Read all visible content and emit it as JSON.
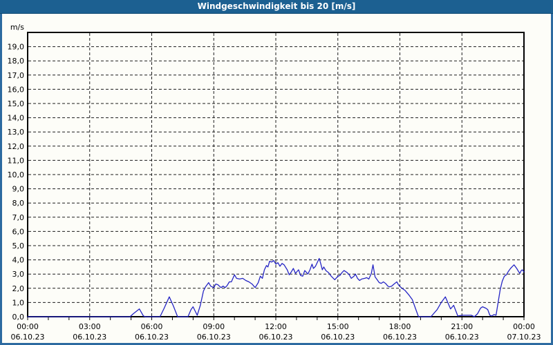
{
  "window": {
    "title": "Windgeschwindigkeit bis 20 [m/s]"
  },
  "colors": {
    "titlebar_bg": "#1c6091",
    "titlebar_border": "#0f4a73",
    "frame": "#2c6aa0",
    "page_bg": "#fdfdf8",
    "plot_bg": "#fdfdf8",
    "axis": "#000000",
    "grid": "#1a1a1a",
    "text": "#000000",
    "line": "#2424c4"
  },
  "chart_data": {
    "type": "line",
    "title": "Windgeschwindigkeit bis 20 [m/s]",
    "ylabel_unit": "m/s",
    "ylim": [
      0,
      20
    ],
    "xlim_hours": [
      0,
      24
    ],
    "y_tick_step": 1,
    "x_gridline_step_hours": 3,
    "x_label_step_hours": 3,
    "x_minor_tick_step_hours": 1,
    "grid": "dashed",
    "legend": "none",
    "y_ticklabels": [
      "0,0",
      "1,0",
      "2,0",
      "3,0",
      "4,0",
      "5,0",
      "6,0",
      "7,0",
      "8,0",
      "9,0",
      "10,0",
      "11,0",
      "12,0",
      "13,0",
      "14,0",
      "15,0",
      "16,0",
      "17,0",
      "18,0",
      "19,0"
    ],
    "x_ticklabels": [
      {
        "time": "00:00",
        "date": "06.10.23"
      },
      {
        "time": "03:00",
        "date": "06.10.23"
      },
      {
        "time": "06:00",
        "date": "06.10.23"
      },
      {
        "time": "09:00",
        "date": "06.10.23"
      },
      {
        "time": "12:00",
        "date": "06.10.23"
      },
      {
        "time": "15:00",
        "date": "06.10.23"
      },
      {
        "time": "18:00",
        "date": "06.10.23"
      },
      {
        "time": "21:00",
        "date": "06.10.23"
      },
      {
        "time": "00:00",
        "date": "07.10.23"
      }
    ],
    "series": [
      {
        "name": "Windgeschwindigkeit",
        "unit": "m/s",
        "points": [
          [
            0,
            0
          ],
          [
            1,
            0
          ],
          [
            2,
            0
          ],
          [
            3,
            0
          ],
          [
            4,
            0
          ],
          [
            4.95,
            0
          ],
          [
            5.1,
            0.2
          ],
          [
            5.4,
            0.55
          ],
          [
            5.6,
            0.05
          ],
          [
            5.7,
            0
          ],
          [
            6.4,
            0
          ],
          [
            6.6,
            0.6
          ],
          [
            6.85,
            1.4
          ],
          [
            7.05,
            0.75
          ],
          [
            7.25,
            0
          ],
          [
            7.75,
            0
          ],
          [
            7.9,
            0.5
          ],
          [
            8.0,
            0.7
          ],
          [
            8.2,
            0.1
          ],
          [
            8.35,
            0.8
          ],
          [
            8.5,
            1.8
          ],
          [
            8.6,
            2.1
          ],
          [
            8.75,
            2.4
          ],
          [
            8.85,
            2.15
          ],
          [
            9.0,
            2.05
          ],
          [
            9.1,
            2.3
          ],
          [
            9.2,
            2.25
          ],
          [
            9.35,
            2.05
          ],
          [
            9.45,
            2.15
          ],
          [
            9.55,
            2.05
          ],
          [
            9.65,
            2.2
          ],
          [
            9.75,
            2.45
          ],
          [
            9.85,
            2.45
          ],
          [
            10.0,
            2.95
          ],
          [
            10.1,
            2.7
          ],
          [
            10.25,
            2.65
          ],
          [
            10.4,
            2.7
          ],
          [
            10.55,
            2.55
          ],
          [
            10.7,
            2.45
          ],
          [
            10.85,
            2.3
          ],
          [
            11.0,
            2.05
          ],
          [
            11.15,
            2.4
          ],
          [
            11.25,
            2.85
          ],
          [
            11.35,
            2.7
          ],
          [
            11.45,
            3.3
          ],
          [
            11.55,
            3.6
          ],
          [
            11.62,
            3.5
          ],
          [
            11.7,
            3.9
          ],
          [
            11.8,
            3.85
          ],
          [
            11.9,
            3.95
          ],
          [
            12.0,
            3.7
          ],
          [
            12.1,
            3.8
          ],
          [
            12.2,
            3.55
          ],
          [
            12.3,
            3.75
          ],
          [
            12.4,
            3.65
          ],
          [
            12.55,
            3.3
          ],
          [
            12.65,
            2.95
          ],
          [
            12.75,
            3.15
          ],
          [
            12.85,
            3.4
          ],
          [
            12.95,
            3.05
          ],
          [
            13.1,
            3.3
          ],
          [
            13.2,
            2.9
          ],
          [
            13.3,
            2.85
          ],
          [
            13.4,
            3.25
          ],
          [
            13.55,
            3.0
          ],
          [
            13.65,
            3.3
          ],
          [
            13.75,
            3.7
          ],
          [
            13.82,
            3.4
          ],
          [
            13.92,
            3.55
          ],
          [
            14.05,
            3.95
          ],
          [
            14.1,
            4.1
          ],
          [
            14.18,
            3.7
          ],
          [
            14.25,
            3.3
          ],
          [
            14.32,
            3.5
          ],
          [
            14.42,
            3.25
          ],
          [
            14.55,
            3.1
          ],
          [
            14.65,
            2.9
          ],
          [
            14.75,
            2.75
          ],
          [
            14.85,
            2.6
          ],
          [
            15.0,
            2.85
          ],
          [
            15.1,
            2.9
          ],
          [
            15.2,
            3.1
          ],
          [
            15.3,
            3.25
          ],
          [
            15.45,
            3.1
          ],
          [
            15.55,
            2.95
          ],
          [
            15.65,
            2.7
          ],
          [
            15.78,
            2.85
          ],
          [
            15.85,
            3.0
          ],
          [
            15.95,
            2.7
          ],
          [
            16.05,
            2.55
          ],
          [
            16.15,
            2.65
          ],
          [
            16.3,
            2.7
          ],
          [
            16.4,
            2.75
          ],
          [
            16.5,
            2.65
          ],
          [
            16.62,
            3.05
          ],
          [
            16.7,
            3.65
          ],
          [
            16.8,
            2.8
          ],
          [
            16.9,
            2.6
          ],
          [
            17.0,
            2.4
          ],
          [
            17.1,
            2.35
          ],
          [
            17.2,
            2.45
          ],
          [
            17.3,
            2.35
          ],
          [
            17.42,
            2.15
          ],
          [
            17.5,
            2.1
          ],
          [
            17.6,
            2.15
          ],
          [
            17.72,
            2.3
          ],
          [
            17.85,
            2.45
          ],
          [
            17.95,
            2.2
          ],
          [
            18.1,
            2.0
          ],
          [
            18.25,
            1.85
          ],
          [
            18.45,
            1.5
          ],
          [
            18.6,
            1.2
          ],
          [
            18.75,
            0.6
          ],
          [
            18.9,
            0
          ],
          [
            19.5,
            0
          ],
          [
            19.8,
            0.5
          ],
          [
            20.0,
            1.0
          ],
          [
            20.2,
            1.4
          ],
          [
            20.45,
            0.55
          ],
          [
            20.6,
            0.8
          ],
          [
            20.8,
            0.05
          ],
          [
            21.0,
            0.1
          ],
          [
            21.45,
            0.1
          ],
          [
            21.6,
            0
          ],
          [
            21.75,
            0.2
          ],
          [
            21.9,
            0.6
          ],
          [
            22.0,
            0.7
          ],
          [
            22.15,
            0.6
          ],
          [
            22.25,
            0.5
          ],
          [
            22.35,
            0.1
          ],
          [
            22.45,
            0.05
          ],
          [
            22.55,
            0.15
          ],
          [
            22.65,
            0.1
          ],
          [
            22.75,
            1.0
          ],
          [
            22.85,
            1.9
          ],
          [
            22.95,
            2.5
          ],
          [
            23.05,
            2.85
          ],
          [
            23.15,
            2.95
          ],
          [
            23.25,
            3.2
          ],
          [
            23.35,
            3.4
          ],
          [
            23.45,
            3.55
          ],
          [
            23.52,
            3.65
          ],
          [
            23.65,
            3.4
          ],
          [
            23.73,
            3.2
          ],
          [
            23.8,
            3.05
          ],
          [
            23.87,
            3.25
          ],
          [
            23.92,
            3.3
          ],
          [
            24.0,
            3.15
          ]
        ]
      }
    ]
  }
}
